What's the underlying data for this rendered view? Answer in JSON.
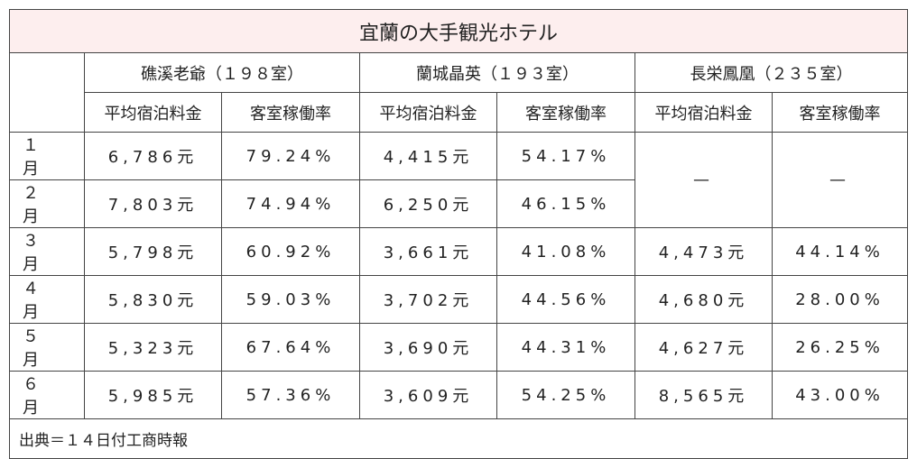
{
  "header": {
    "title": "宜蘭の大手観光ホテル"
  },
  "table": {
    "hotels": [
      "礁溪老爺（１９８室）",
      "蘭城晶英（１９３室）",
      "長栄鳳凰（２３５室）"
    ],
    "subheaders": [
      "平均宿泊料金",
      "客室稼働率",
      "平均宿泊料金",
      "客室稼働率",
      "平均宿泊料金",
      "客室稼働率"
    ],
    "rows": [
      {
        "month": "１　　月",
        "cells": [
          "6,786元",
          "79.24%",
          "4,415元",
          "54.17%",
          "—",
          "—"
        ]
      },
      {
        "month": "２　　月",
        "cells": [
          "7,803元",
          "74.94%",
          "6,250元",
          "46.15%"
        ]
      },
      {
        "month": "３　　月",
        "cells": [
          "5,798元",
          "60.92%",
          "3,661元",
          "41.08%",
          "4,473元",
          "44.14%"
        ]
      },
      {
        "month": "４　　月",
        "cells": [
          "5,830元",
          "59.03%",
          "3,702元",
          "44.56%",
          "4,680元",
          "28.00%"
        ]
      },
      {
        "month": "５　　月",
        "cells": [
          "5,323元",
          "67.64%",
          "3,690元",
          "44.31%",
          "4,627元",
          "26.25%"
        ]
      },
      {
        "month": "６　　月",
        "cells": [
          "5,985元",
          "57.36%",
          "3,609元",
          "54.25%",
          "8,565元",
          "43.00%"
        ]
      }
    ]
  },
  "footer": {
    "source": "出典＝１４日付工商時報"
  }
}
